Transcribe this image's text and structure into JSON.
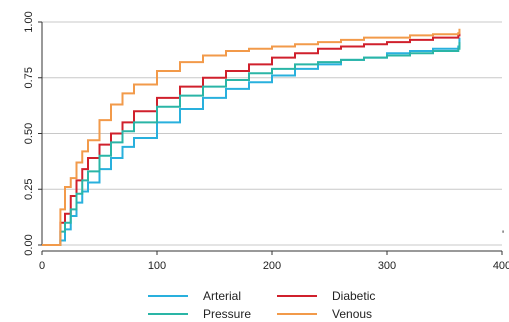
{
  "chart_data": {
    "type": "line",
    "title": "",
    "xlabel": "",
    "ylabel": "",
    "xlim": [
      0,
      400
    ],
    "ylim": [
      0,
      1
    ],
    "x_ticks": [
      "0",
      "100",
      "200",
      "300",
      "400"
    ],
    "y_ticks": [
      "0.00",
      "0.25",
      "0.50",
      "0.75",
      "1.00"
    ],
    "grid": "horizontal",
    "legend_position": "bottom",
    "series": [
      {
        "name": "Arterial",
        "color": "#29b0dd",
        "points": [
          [
            0,
            0
          ],
          [
            13,
            0
          ],
          [
            16,
            0.02
          ],
          [
            20,
            0.07
          ],
          [
            25,
            0.13
          ],
          [
            30,
            0.19
          ],
          [
            35,
            0.24
          ],
          [
            40,
            0.28
          ],
          [
            50,
            0.34
          ],
          [
            60,
            0.39
          ],
          [
            70,
            0.44
          ],
          [
            80,
            0.48
          ],
          [
            100,
            0.55
          ],
          [
            120,
            0.61
          ],
          [
            140,
            0.66
          ],
          [
            160,
            0.7
          ],
          [
            180,
            0.73
          ],
          [
            200,
            0.76
          ],
          [
            220,
            0.79
          ],
          [
            240,
            0.81
          ],
          [
            260,
            0.83
          ],
          [
            280,
            0.84
          ],
          [
            300,
            0.86
          ],
          [
            320,
            0.87
          ],
          [
            340,
            0.88
          ],
          [
            362,
            0.89
          ],
          [
            363,
            0.93
          ]
        ]
      },
      {
        "name": "Diabetic",
        "color": "#d0202c",
        "points": [
          [
            0,
            0
          ],
          [
            13,
            0
          ],
          [
            16,
            0.1
          ],
          [
            20,
            0.14
          ],
          [
            25,
            0.22
          ],
          [
            30,
            0.29
          ],
          [
            35,
            0.34
          ],
          [
            40,
            0.39
          ],
          [
            50,
            0.45
          ],
          [
            60,
            0.5
          ],
          [
            70,
            0.55
          ],
          [
            80,
            0.6
          ],
          [
            100,
            0.66
          ],
          [
            120,
            0.71
          ],
          [
            140,
            0.75
          ],
          [
            160,
            0.78
          ],
          [
            180,
            0.81
          ],
          [
            200,
            0.84
          ],
          [
            220,
            0.86
          ],
          [
            240,
            0.88
          ],
          [
            260,
            0.89
          ],
          [
            280,
            0.9
          ],
          [
            300,
            0.91
          ],
          [
            320,
            0.92
          ],
          [
            340,
            0.93
          ],
          [
            362,
            0.94
          ],
          [
            363,
            0.95
          ]
        ]
      },
      {
        "name": "Pressure",
        "color": "#2ab5a6",
        "points": [
          [
            0,
            0
          ],
          [
            13,
            0
          ],
          [
            16,
            0.06
          ],
          [
            20,
            0.1
          ],
          [
            25,
            0.16
          ],
          [
            30,
            0.23
          ],
          [
            35,
            0.29
          ],
          [
            40,
            0.33
          ],
          [
            50,
            0.4
          ],
          [
            60,
            0.46
          ],
          [
            70,
            0.51
          ],
          [
            80,
            0.55
          ],
          [
            100,
            0.62
          ],
          [
            120,
            0.67
          ],
          [
            140,
            0.71
          ],
          [
            160,
            0.74
          ],
          [
            180,
            0.77
          ],
          [
            200,
            0.79
          ],
          [
            220,
            0.81
          ],
          [
            240,
            0.82
          ],
          [
            260,
            0.83
          ],
          [
            280,
            0.84
          ],
          [
            300,
            0.85
          ],
          [
            320,
            0.86
          ],
          [
            340,
            0.87
          ],
          [
            362,
            0.88
          ],
          [
            363,
            0.91
          ]
        ]
      },
      {
        "name": "Venous",
        "color": "#f29a4a",
        "points": [
          [
            0,
            0
          ],
          [
            13,
            0
          ],
          [
            16,
            0.16
          ],
          [
            20,
            0.26
          ],
          [
            25,
            0.3
          ],
          [
            30,
            0.37
          ],
          [
            35,
            0.42
          ],
          [
            40,
            0.47
          ],
          [
            50,
            0.56
          ],
          [
            60,
            0.63
          ],
          [
            70,
            0.68
          ],
          [
            80,
            0.72
          ],
          [
            100,
            0.78
          ],
          [
            120,
            0.82
          ],
          [
            140,
            0.85
          ],
          [
            160,
            0.87
          ],
          [
            180,
            0.88
          ],
          [
            200,
            0.89
          ],
          [
            220,
            0.9
          ],
          [
            240,
            0.91
          ],
          [
            260,
            0.92
          ],
          [
            280,
            0.93
          ],
          [
            300,
            0.93
          ],
          [
            320,
            0.94
          ],
          [
            340,
            0.945
          ],
          [
            362,
            0.95
          ],
          [
            363,
            0.97
          ]
        ]
      }
    ],
    "annotations": [
      {
        "x": 400,
        "y": 0.05,
        "text": "' "
      }
    ]
  }
}
